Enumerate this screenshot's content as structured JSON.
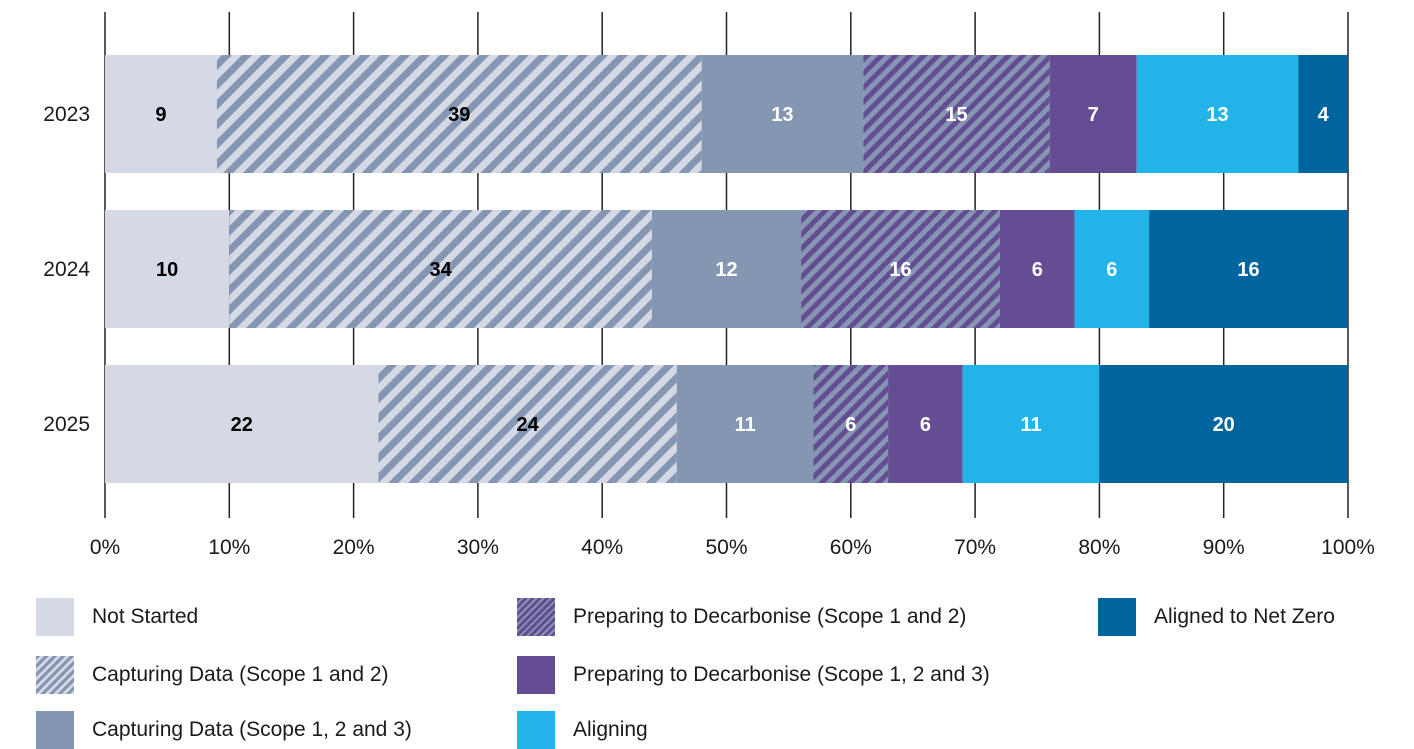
{
  "chart_data": {
    "type": "bar",
    "orientation": "horizontal",
    "stacked": true,
    "categories": [
      "2023",
      "2024",
      "2025"
    ],
    "xlim": [
      0,
      100
    ],
    "xticks": [
      "0%",
      "10%",
      "20%",
      "30%",
      "40%",
      "50%",
      "60%",
      "70%",
      "80%",
      "90%",
      "100%"
    ],
    "grid": "vertical",
    "legend_position": "bottom",
    "series": [
      {
        "name": "Not Started",
        "values": [
          9,
          10,
          22
        ],
        "color": "#d5d9e6",
        "pattern": "solid",
        "label_color": "#000000"
      },
      {
        "name": "Capturing Data (Scope 1 and 2)",
        "values": [
          39,
          34,
          24
        ],
        "color": "#8496b2",
        "pattern": "hatch-light",
        "label_color": "#000000"
      },
      {
        "name": "Capturing Data (Scope 1, 2 and 3)",
        "values": [
          13,
          12,
          11
        ],
        "color": "#8496b2",
        "pattern": "solid",
        "label_color": "#ffffff"
      },
      {
        "name": "Preparing to Decarbonise (Scope 1 and 2)",
        "values": [
          15,
          16,
          6
        ],
        "color": "#6a4f94",
        "pattern": "hatch-dark",
        "label_color": "#ffffff"
      },
      {
        "name": "Preparing to Decarbonise (Scope 1, 2 and 3)",
        "values": [
          7,
          6,
          6
        ],
        "color": "#654d93",
        "pattern": "solid",
        "label_color": "#ffffff"
      },
      {
        "name": "Aligning",
        "values": [
          13,
          6,
          11
        ],
        "color": "#22b4e8",
        "pattern": "solid",
        "label_color": "#ffffff"
      },
      {
        "name": "Aligned to Net Zero",
        "values": [
          4,
          16,
          20
        ],
        "color": "#00659e",
        "pattern": "solid",
        "label_color": "#ffffff"
      }
    ]
  },
  "legend": {
    "items": [
      {
        "label": "Not Started",
        "swatch": "#d5d9e6"
      },
      {
        "label": "Capturing Data (Scope 1 and 2)",
        "swatch": "hatch-light"
      },
      {
        "label": "Capturing Data (Scope 1, 2 and 3)",
        "swatch": "#8496b2"
      },
      {
        "label": "Preparing to Decarbonise (Scope 1 and 2)",
        "swatch": "hatch-dark"
      },
      {
        "label": "Preparing to Decarbonise (Scope 1, 2 and 3)",
        "swatch": "#654d93"
      },
      {
        "label": "Aligning",
        "swatch": "#22b4e8"
      },
      {
        "label": "Aligned to Net Zero",
        "swatch": "#00659e"
      }
    ]
  }
}
